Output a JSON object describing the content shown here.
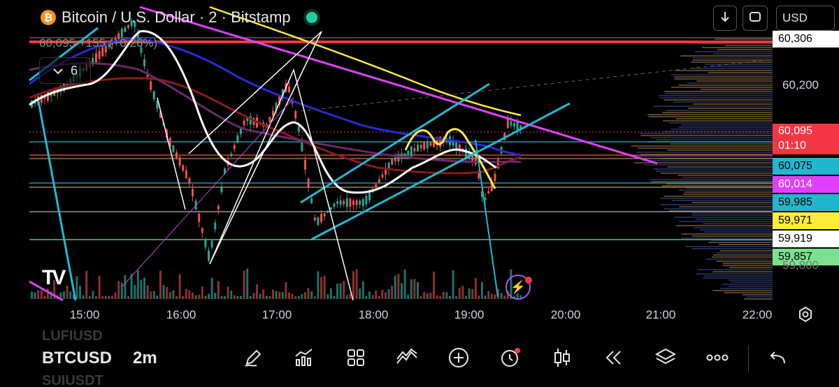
{
  "header": {
    "coin_glyph": "₿",
    "title": "Bitcoin / U.S. Dollar · 2 · Bitstamp",
    "price_line": "60,095  +155 (+0.26%)",
    "indicators_count": "6",
    "currency": "USD"
  },
  "price_axis": {
    "top_label": "60,306",
    "tick_200": "60,200",
    "bottom_partial": "59,800"
  },
  "price_labels": [
    {
      "value": "60,095",
      "sub": "01:10",
      "bg": "#f23645",
      "fg": "#ffffff"
    },
    {
      "value": "60,075",
      "bg": "#22b7d1",
      "fg": "#000000"
    },
    {
      "value": "60,014",
      "bg": "#e040fb",
      "fg": "#ffffff"
    },
    {
      "value": "59,985",
      "bg": "#22b7d1",
      "fg": "#000000"
    },
    {
      "value": "59,971",
      "bg": "#ffeb3b",
      "fg": "#000000"
    },
    {
      "value": "59,919",
      "bg": "#ffffff",
      "fg": "#000000"
    },
    {
      "value": "59,857",
      "bg": "#7be08f",
      "fg": "#000000"
    }
  ],
  "time_axis": [
    "15:00",
    "16:00",
    "17:00",
    "18:00",
    "19:00",
    "20:00",
    "21:00",
    "22:00"
  ],
  "tv_logo": "TV",
  "bottom_bar": {
    "symbol_prev": "LUFIUSD",
    "symbol": "BTCUSD",
    "timeframe": "2m",
    "symbol_next": "SUIUSDT",
    "tools": [
      "pencil-icon",
      "indicators-icon",
      "grid-icon",
      "pattern-icon",
      "add-icon",
      "alert-icon",
      "candles-icon",
      "replay-icon",
      "layers-icon",
      "more-icon",
      "undo-icon"
    ]
  },
  "colors": {
    "up": "#26a69a",
    "down": "#ef5350",
    "cyan": "#22b7d1",
    "magenta": "#e040fb",
    "yellow": "#ffeb3b",
    "red_line": "#f23645"
  }
}
